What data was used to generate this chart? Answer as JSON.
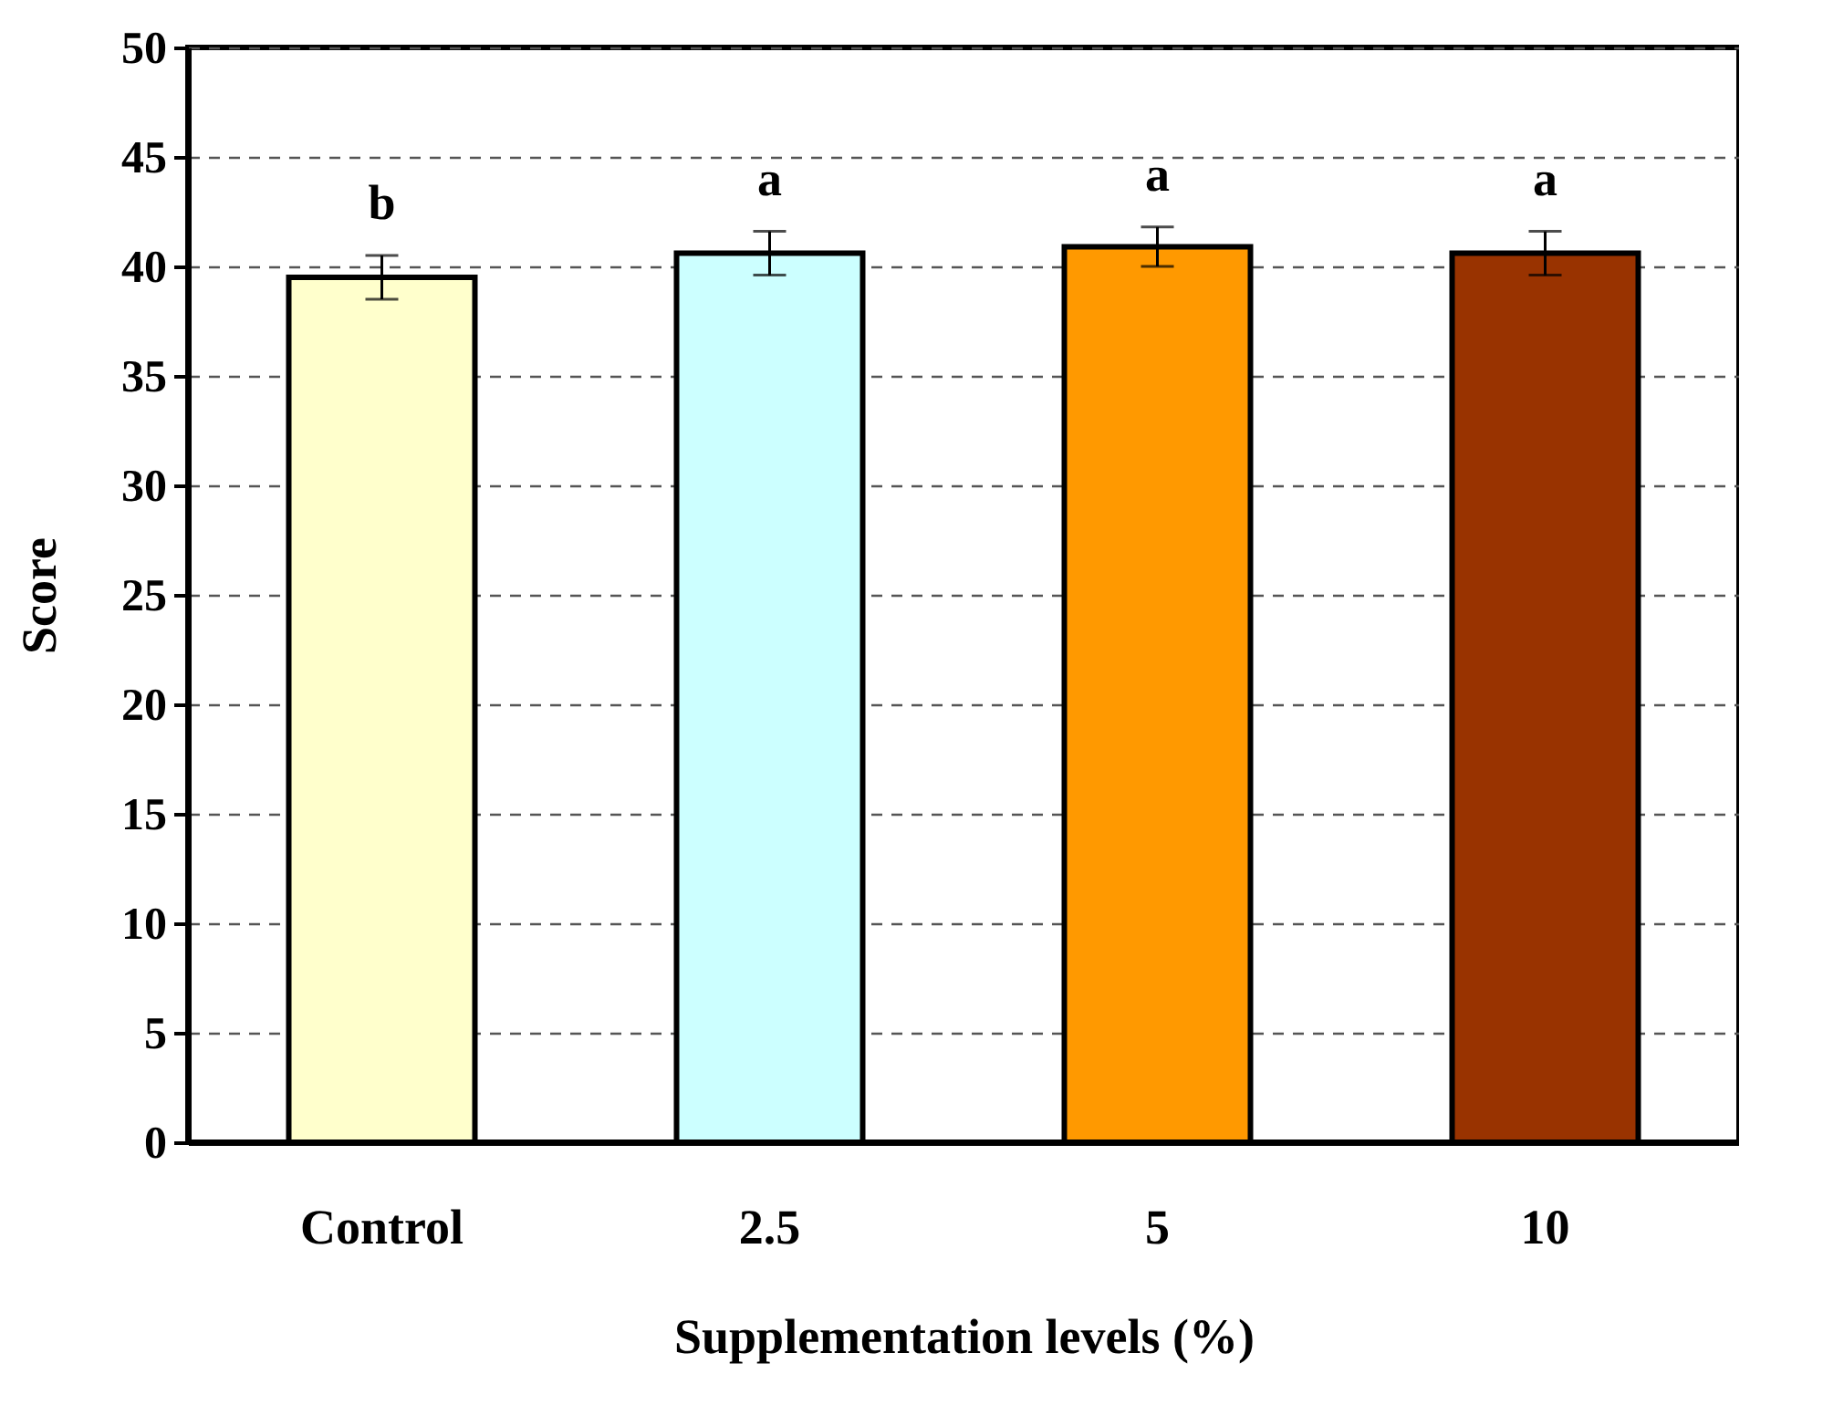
{
  "chart_data": {
    "type": "bar",
    "xlabel": "Supplementation levels (%)",
    "ylabel": "Score",
    "categories": [
      "Control",
      "2.5",
      "5",
      "10"
    ],
    "values": [
      39.5,
      40.6,
      40.9,
      40.6
    ],
    "colors": [
      "#ffffcc",
      "#ccffff",
      "#ff9900",
      "#993300"
    ],
    "errors": [
      1,
      1,
      0.9,
      1
    ],
    "ylim": [
      0,
      50
    ],
    "yticks": [
      0,
      5,
      10,
      15,
      20,
      25,
      30,
      35,
      40,
      45,
      50
    ],
    "grid": "y",
    "annotations": [
      "b",
      "a",
      "a",
      "a"
    ]
  }
}
